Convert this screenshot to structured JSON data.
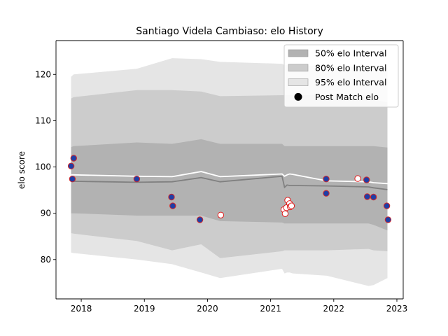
{
  "chart_data": {
    "type": "line",
    "title": "Santiago Videla Cambiaso: elo History",
    "xlabel": "",
    "ylabel": "elo score",
    "xlim": [
      2017.6,
      2023.1
    ],
    "ylim": [
      71.5,
      127.3
    ],
    "xticks": [
      2018,
      2019,
      2020,
      2021,
      2022,
      2023
    ],
    "xtick_labels": [
      "2018",
      "2019",
      "2020",
      "2021",
      "2022",
      "2023"
    ],
    "yticks": [
      80,
      90,
      100,
      110,
      120
    ],
    "ytick_labels": [
      "80",
      "90",
      "100",
      "110",
      "120"
    ],
    "grid": false,
    "legend_position": "top-right",
    "legend": {
      "band50": "50% elo Interval",
      "band80": "80% elo Interval",
      "band95": "95% elo Interval",
      "points": "Post Match elo"
    },
    "colors": {
      "band50": "#b2b2b2",
      "band80": "#cccccc",
      "band95": "#e5e5e5",
      "median_line": "#808080",
      "mean_line": "#ffffff",
      "win_fill": "#1f3fa6",
      "win_edge": "#d62728",
      "loss_fill": "#ffffff",
      "loss_edge": "#e01a1a",
      "legend_marker": "#000000"
    },
    "x": [
      2017.84,
      2017.88,
      2018.88,
      2019.44,
      2019.9,
      2020.2,
      2021.18,
      2021.22,
      2021.26,
      2021.3,
      2021.35,
      2021.89,
      2022.55,
      2022.63,
      2022.85
    ],
    "band95_upper": [
      119.5,
      120,
      121.2,
      123.5,
      123.3,
      122.7,
      122.3,
      122.0,
      122.0,
      122.0,
      122.0,
      121.8,
      121.5,
      121.5,
      121.5
    ],
    "band95_lower": [
      81.5,
      81.4,
      80.0,
      79.0,
      77.2,
      76.0,
      78.0,
      77.0,
      77.2,
      77.2,
      77.0,
      76.5,
      74.3,
      74.5,
      76.0
    ],
    "band80_upper": [
      114.8,
      115.1,
      116.6,
      116.6,
      116.3,
      115.3,
      115.5,
      115.5,
      115.5,
      115.5,
      115.5,
      115.5,
      115.0,
      114.5,
      114.0
    ],
    "band80_lower": [
      85.7,
      85.6,
      84.0,
      82.0,
      83.3,
      80.3,
      81.8,
      82.0,
      82.0,
      82.0,
      82.0,
      82.0,
      82.3,
      82.0,
      81.8
    ],
    "band50_upper": [
      104.3,
      104.5,
      105.3,
      105.0,
      106.0,
      105.0,
      105.0,
      104.5,
      104.5,
      104.5,
      104.5,
      104.5,
      104.5,
      104.5,
      104.2
    ],
    "band50_lower": [
      90.0,
      90.0,
      89.5,
      89.5,
      89.5,
      88.3,
      88.0,
      87.8,
      87.8,
      87.8,
      87.8,
      87.8,
      87.8,
      87.5,
      86.3
    ],
    "median": [
      96.9,
      96.9,
      96.7,
      96.8,
      97.7,
      96.8,
      98.0,
      95.6,
      96.1,
      96.0,
      96.0,
      95.9,
      95.7,
      95.5,
      95.1
    ],
    "mean": [
      98.3,
      98.3,
      98.0,
      97.9,
      99.0,
      97.9,
      98.5,
      98.0,
      98.3,
      98.5,
      98.4,
      97.0,
      96.8,
      96.6,
      96.4
    ],
    "points": [
      {
        "x": 2017.84,
        "y": 100.2,
        "result": "win"
      },
      {
        "x": 2017.86,
        "y": 97.4,
        "result": "win"
      },
      {
        "x": 2017.88,
        "y": 101.9,
        "result": "win"
      },
      {
        "x": 2018.88,
        "y": 97.4,
        "result": "win"
      },
      {
        "x": 2019.43,
        "y": 93.5,
        "result": "win"
      },
      {
        "x": 2019.45,
        "y": 91.6,
        "result": "win"
      },
      {
        "x": 2019.88,
        "y": 88.6,
        "result": "win"
      },
      {
        "x": 2020.21,
        "y": 89.6,
        "result": "loss"
      },
      {
        "x": 2021.21,
        "y": 90.8,
        "result": "loss"
      },
      {
        "x": 2021.23,
        "y": 89.9,
        "result": "loss"
      },
      {
        "x": 2021.25,
        "y": 91.2,
        "result": "loss"
      },
      {
        "x": 2021.27,
        "y": 92.8,
        "result": "loss"
      },
      {
        "x": 2021.3,
        "y": 92.1,
        "result": "loss"
      },
      {
        "x": 2021.31,
        "y": 91.4,
        "result": "loss"
      },
      {
        "x": 2021.33,
        "y": 91.6,
        "result": "loss"
      },
      {
        "x": 2021.88,
        "y": 97.4,
        "result": "win"
      },
      {
        "x": 2021.88,
        "y": 94.3,
        "result": "win"
      },
      {
        "x": 2022.38,
        "y": 97.5,
        "result": "loss"
      },
      {
        "x": 2022.52,
        "y": 97.2,
        "result": "win"
      },
      {
        "x": 2022.53,
        "y": 93.6,
        "result": "win"
      },
      {
        "x": 2022.63,
        "y": 93.5,
        "result": "win"
      },
      {
        "x": 2022.84,
        "y": 91.6,
        "result": "win"
      },
      {
        "x": 2022.86,
        "y": 88.6,
        "result": "win"
      }
    ]
  }
}
